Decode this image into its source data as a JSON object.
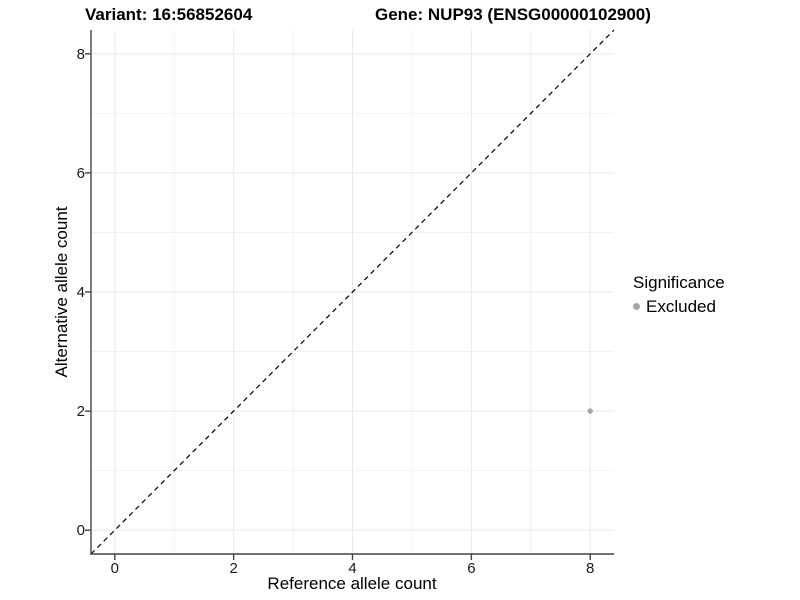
{
  "titles": {
    "variant": "Variant: 16:56852604",
    "gene": "Gene: NUP93 (ENSG00000102900)"
  },
  "axes": {
    "x_label": "Reference allele count",
    "y_label": "Alternative allele count",
    "x_ticks": [
      "0",
      "2",
      "4",
      "6",
      "8"
    ],
    "y_ticks": [
      "0",
      "2",
      "4",
      "6",
      "8"
    ]
  },
  "legend": {
    "title": "Significance",
    "items": [
      {
        "label": "Excluded",
        "color": "#a6a6a6"
      }
    ]
  },
  "colors": {
    "background": "#ffffff",
    "grid_major": "#e9e9e9",
    "grid_minor": "#f2f2f2",
    "axis_line": "#444444",
    "tick_mark": "#444444",
    "reference_line": "#000000",
    "point": "#a6a6a6",
    "text": "#000000"
  },
  "chart_data": {
    "type": "scatter",
    "title": "Variant: 16:56852604 | Gene: NUP93 (ENSG00000102900)",
    "xlabel": "Reference allele count",
    "ylabel": "Alternative allele count",
    "xlim": [
      -0.4,
      8.4
    ],
    "ylim": [
      -0.4,
      8.4
    ],
    "x_major_ticks": [
      0,
      2,
      4,
      6,
      8
    ],
    "y_major_ticks": [
      0,
      2,
      4,
      6,
      8
    ],
    "x_minor_ticks": [
      1,
      3,
      5,
      7
    ],
    "y_minor_ticks": [
      1,
      3,
      5,
      7
    ],
    "grid": "on",
    "legend_position": "right",
    "series": [
      {
        "name": "Excluded",
        "color": "#a6a6a6",
        "marker_radius": 2.7,
        "points": [
          [
            8,
            2
          ]
        ]
      }
    ],
    "reference_line": {
      "type": "identity",
      "style": "dashed",
      "color": "#000000",
      "from": [
        -0.4,
        -0.4
      ],
      "to": [
        8.4,
        8.4
      ]
    }
  }
}
